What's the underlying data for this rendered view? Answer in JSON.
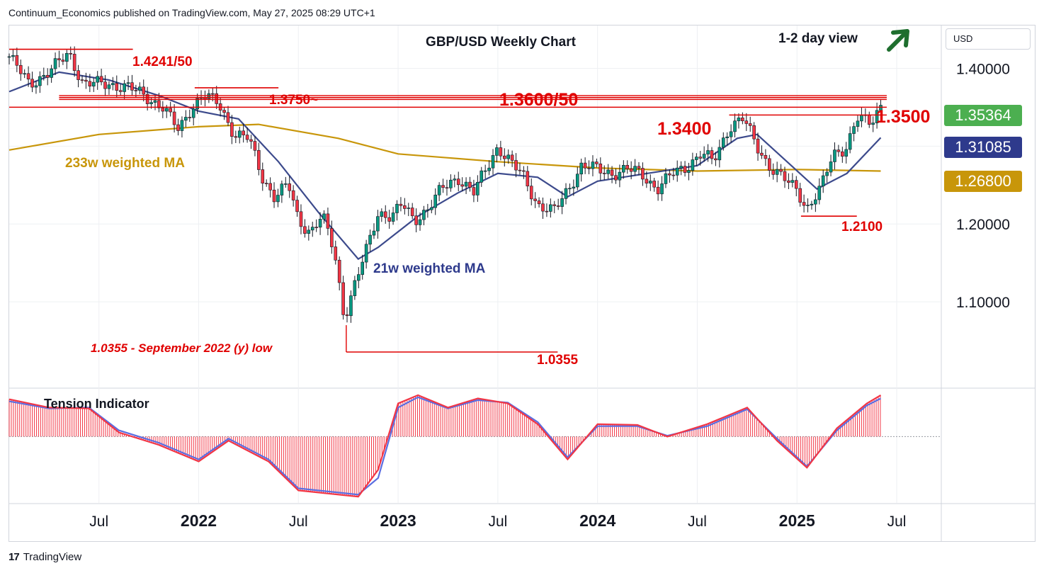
{
  "header": {
    "publisher": "Continuum_Economics published on TradingView.com, May 27, 2025 08:29 UTC+1"
  },
  "footer": {
    "brand": "TradingView"
  },
  "currency": "USD",
  "colors": {
    "up": "#089981",
    "down": "#f23645",
    "red_label": "#e00000",
    "ma233": "#c8960a",
    "ma21": "#3c4a8c",
    "tension_red": "#f23645",
    "tension_blue": "#5b6ee1",
    "price_tag": "#4caf50",
    "ma21_tag": "#2e3a8c",
    "ma233_tag": "#c8960a",
    "arrow": "#1e6e2e"
  },
  "icons": {
    "trend": "arrow-up-right-icon",
    "logo": "tradingview-logo-icon"
  },
  "price_tags": [
    {
      "value": "1.35364",
      "color": "#4caf50",
      "y_value": 1.35364
    },
    {
      "value": "1.31085",
      "color": "#2e3a8c",
      "y_value": 1.31085
    },
    {
      "value": "1.26800",
      "color": "#c8960a",
      "y_value": 1.268
    }
  ],
  "chart_data": {
    "type": "candlestick",
    "title": "GBP/USD Weekly Chart",
    "view_label": "1-2 day view",
    "y_axis": {
      "ticks": [
        1.1,
        1.2,
        1.3,
        1.4
      ],
      "tick_labels": [
        "1.10000",
        "1.20000",
        "1.30000",
        "1.40000"
      ],
      "range": [
        0.99,
        1.455
      ]
    },
    "x_axis": {
      "labels": [
        "Jul",
        "2022",
        "Jul",
        "2023",
        "Jul",
        "2024",
        "Jul",
        "2025",
        "Jul"
      ],
      "bold": [
        false,
        true,
        false,
        true,
        false,
        true,
        false,
        true,
        false
      ],
      "x_range": [
        "2021-03",
        "2025-09"
      ]
    },
    "grid": true,
    "levels": [
      {
        "label": "1.4241/50",
        "value": 1.4245,
        "from": 2021.05,
        "to": 2021.67
      },
      {
        "label": "1.3750~",
        "value": 1.375,
        "from": 2021.98,
        "to": 2022.4
      },
      {
        "label": "1.3600/50",
        "value": 1.3625,
        "from": 2021.3,
        "to": 2025.45
      },
      {
        "label": "1.3500",
        "value": 1.35,
        "from": 2021.05,
        "to": 2025.45
      },
      {
        "label": "1.3400",
        "value": 1.34,
        "from": 2024.66,
        "to": 2025.45
      },
      {
        "label": "1.2100",
        "value": 1.21,
        "from": 2025.02,
        "to": 2025.3
      },
      {
        "label": "1.0355",
        "value": 1.0355,
        "from": 2022.74,
        "to": 2023.8
      }
    ],
    "annotations": [
      {
        "text": "1.0355 - September 2022 (y) low"
      },
      {
        "text": "233w weighted MA"
      },
      {
        "text": "21w weighted MA"
      }
    ],
    "close_path": [
      [
        2021.05,
        1.415
      ],
      [
        2021.15,
        1.38
      ],
      [
        2021.25,
        1.395
      ],
      [
        2021.35,
        1.42
      ],
      [
        2021.42,
        1.38
      ],
      [
        2021.55,
        1.38
      ],
      [
        2021.65,
        1.375
      ],
      [
        2021.73,
        1.365
      ],
      [
        2021.82,
        1.35
      ],
      [
        2021.9,
        1.32
      ],
      [
        2021.95,
        1.345
      ],
      [
        2022.02,
        1.365
      ],
      [
        2022.1,
        1.355
      ],
      [
        2022.18,
        1.315
      ],
      [
        2022.25,
        1.31
      ],
      [
        2022.32,
        1.26
      ],
      [
        2022.38,
        1.235
      ],
      [
        2022.45,
        1.25
      ],
      [
        2022.5,
        1.205
      ],
      [
        2022.56,
        1.19
      ],
      [
        2022.62,
        1.21
      ],
      [
        2022.68,
        1.165
      ],
      [
        2022.73,
        1.08
      ],
      [
        2022.78,
        1.12
      ],
      [
        2022.84,
        1.165
      ],
      [
        2022.9,
        1.215
      ],
      [
        2022.97,
        1.21
      ],
      [
        2023.02,
        1.225
      ],
      [
        2023.08,
        1.205
      ],
      [
        2023.15,
        1.22
      ],
      [
        2023.22,
        1.245
      ],
      [
        2023.3,
        1.26
      ],
      [
        2023.38,
        1.24
      ],
      [
        2023.44,
        1.27
      ],
      [
        2023.5,
        1.3
      ],
      [
        2023.56,
        1.28
      ],
      [
        2023.63,
        1.26
      ],
      [
        2023.7,
        1.225
      ],
      [
        2023.78,
        1.215
      ],
      [
        2023.84,
        1.24
      ],
      [
        2023.92,
        1.275
      ],
      [
        2024.0,
        1.27
      ],
      [
        2024.08,
        1.265
      ],
      [
        2024.15,
        1.27
      ],
      [
        2024.22,
        1.265
      ],
      [
        2024.3,
        1.245
      ],
      [
        2024.38,
        1.265
      ],
      [
        2024.45,
        1.275
      ],
      [
        2024.52,
        1.29
      ],
      [
        2024.58,
        1.28
      ],
      [
        2024.66,
        1.325
      ],
      [
        2024.73,
        1.335
      ],
      [
        2024.8,
        1.3
      ],
      [
        2024.86,
        1.275
      ],
      [
        2024.92,
        1.26
      ],
      [
        2025.0,
        1.245
      ],
      [
        2025.05,
        1.22
      ],
      [
        2025.12,
        1.245
      ],
      [
        2025.18,
        1.29
      ],
      [
        2025.25,
        1.3
      ],
      [
        2025.3,
        1.335
      ],
      [
        2025.37,
        1.33
      ],
      [
        2025.42,
        1.35364
      ]
    ],
    "ma21_path": [
      [
        2021.05,
        1.37
      ],
      [
        2021.3,
        1.395
      ],
      [
        2021.55,
        1.385
      ],
      [
        2021.8,
        1.365
      ],
      [
        2022.0,
        1.345
      ],
      [
        2022.2,
        1.335
      ],
      [
        2022.4,
        1.28
      ],
      [
        2022.6,
        1.215
      ],
      [
        2022.8,
        1.155
      ],
      [
        2022.9,
        1.17
      ],
      [
        2023.1,
        1.21
      ],
      [
        2023.3,
        1.24
      ],
      [
        2023.5,
        1.265
      ],
      [
        2023.7,
        1.26
      ],
      [
        2023.85,
        1.235
      ],
      [
        2024.0,
        1.255
      ],
      [
        2024.25,
        1.265
      ],
      [
        2024.5,
        1.275
      ],
      [
        2024.7,
        1.31
      ],
      [
        2024.8,
        1.315
      ],
      [
        2024.95,
        1.28
      ],
      [
        2025.1,
        1.245
      ],
      [
        2025.25,
        1.265
      ],
      [
        2025.42,
        1.31085
      ]
    ],
    "ma233_path": [
      [
        2021.05,
        1.295
      ],
      [
        2021.5,
        1.315
      ],
      [
        2022.0,
        1.325
      ],
      [
        2022.3,
        1.328
      ],
      [
        2022.7,
        1.31
      ],
      [
        2023.0,
        1.29
      ],
      [
        2023.5,
        1.28
      ],
      [
        2024.0,
        1.272
      ],
      [
        2024.5,
        1.268
      ],
      [
        2025.0,
        1.27
      ],
      [
        2025.42,
        1.268
      ]
    ],
    "tension_indicator": {
      "title": "Tension Indicator",
      "line_a": [
        [
          2021.05,
          0.9
        ],
        [
          2021.25,
          0.7
        ],
        [
          2021.45,
          0.68
        ],
        [
          2021.6,
          0.1
        ],
        [
          2021.8,
          -0.2
        ],
        [
          2022.0,
          -0.6
        ],
        [
          2022.15,
          -0.1
        ],
        [
          2022.35,
          -0.6
        ],
        [
          2022.5,
          -1.3
        ],
        [
          2022.7,
          -1.4
        ],
        [
          2022.8,
          -1.45
        ],
        [
          2022.9,
          -0.8
        ],
        [
          2023.0,
          0.8
        ],
        [
          2023.1,
          1.0
        ],
        [
          2023.25,
          0.7
        ],
        [
          2023.4,
          0.92
        ],
        [
          2023.55,
          0.8
        ],
        [
          2023.7,
          0.3
        ],
        [
          2023.85,
          -0.55
        ],
        [
          2024.0,
          0.3
        ],
        [
          2024.2,
          0.28
        ],
        [
          2024.35,
          0.0
        ],
        [
          2024.55,
          0.3
        ],
        [
          2024.75,
          0.7
        ],
        [
          2024.9,
          -0.1
        ],
        [
          2025.05,
          -0.75
        ],
        [
          2025.2,
          0.2
        ],
        [
          2025.35,
          0.8
        ],
        [
          2025.42,
          1.0
        ]
      ],
      "line_b": [
        [
          2021.05,
          0.85
        ],
        [
          2021.25,
          0.68
        ],
        [
          2021.45,
          0.7
        ],
        [
          2021.6,
          0.15
        ],
        [
          2021.8,
          -0.15
        ],
        [
          2022.0,
          -0.55
        ],
        [
          2022.15,
          -0.05
        ],
        [
          2022.35,
          -0.55
        ],
        [
          2022.5,
          -1.25
        ],
        [
          2022.7,
          -1.35
        ],
        [
          2022.8,
          -1.4
        ],
        [
          2022.9,
          -1.0
        ],
        [
          2023.0,
          0.7
        ],
        [
          2023.1,
          0.95
        ],
        [
          2023.25,
          0.68
        ],
        [
          2023.4,
          0.88
        ],
        [
          2023.55,
          0.82
        ],
        [
          2023.7,
          0.35
        ],
        [
          2023.85,
          -0.5
        ],
        [
          2024.0,
          0.25
        ],
        [
          2024.2,
          0.25
        ],
        [
          2024.35,
          0.02
        ],
        [
          2024.55,
          0.25
        ],
        [
          2024.75,
          0.66
        ],
        [
          2024.9,
          -0.05
        ],
        [
          2025.05,
          -0.72
        ],
        [
          2025.2,
          0.15
        ],
        [
          2025.35,
          0.75
        ],
        [
          2025.42,
          0.92
        ]
      ],
      "range": [
        -1.6,
        1.1
      ]
    }
  }
}
